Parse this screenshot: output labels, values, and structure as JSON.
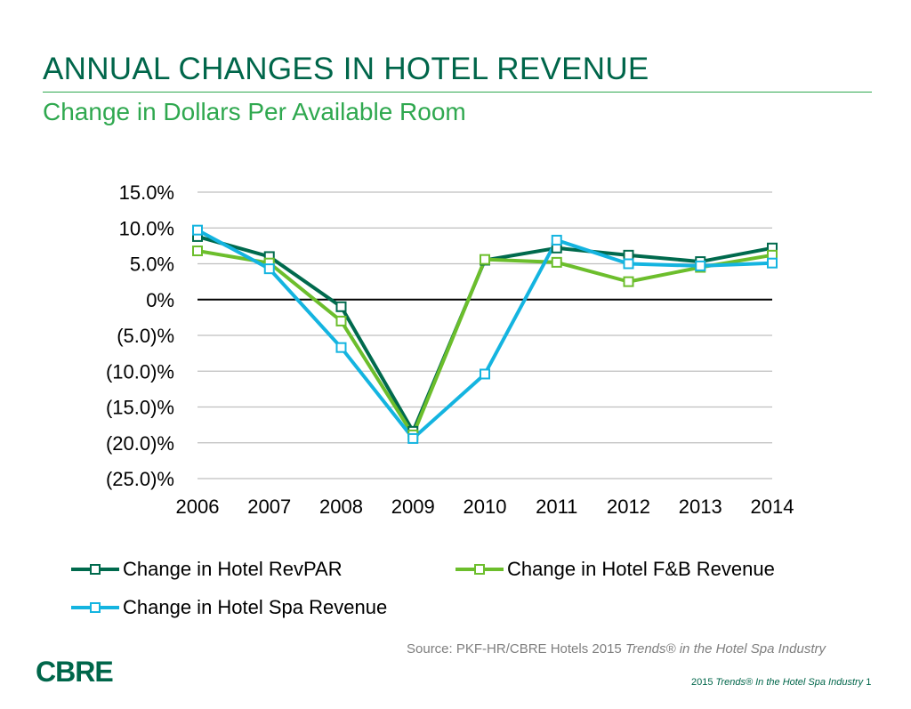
{
  "header": {
    "title": "ANNUAL CHANGES IN HOTEL REVENUE",
    "subtitle": "Change in Dollars Per Available Room"
  },
  "chart_data": {
    "type": "line",
    "title": "",
    "xlabel": "",
    "ylabel": "",
    "categories": [
      "2006",
      "2007",
      "2008",
      "2009",
      "2010",
      "2011",
      "2012",
      "2013",
      "2014"
    ],
    "ylim": [
      -25,
      15
    ],
    "yticks": [
      15,
      10,
      5,
      0,
      -5,
      -10,
      -15,
      -20,
      -25
    ],
    "ytick_labels": [
      "15.0%",
      "10.0%",
      "5.0%",
      "0%",
      "(5.0)%",
      "(10.0)%",
      "(15.0)%",
      "(20.0)%",
      "(25.0)%"
    ],
    "grid": true,
    "legend_position": "bottom",
    "series": [
      {
        "name": "Change in Hotel RevPAR",
        "color": "#006a4d",
        "values": [
          8.8,
          6.0,
          -1.0,
          -18.4,
          5.5,
          7.2,
          6.2,
          5.3,
          7.2
        ]
      },
      {
        "name": "Change in Hotel F&B Revenue",
        "color": "#6cbe2c",
        "values": [
          6.8,
          5.1,
          -3.0,
          -18.9,
          5.6,
          5.2,
          2.5,
          4.5,
          6.2
        ]
      },
      {
        "name": "Change in Hotel Spa Revenue",
        "color": "#14b4e0",
        "values": [
          9.7,
          4.3,
          -6.7,
          -19.4,
          -10.4,
          8.3,
          5.0,
          4.7,
          5.1
        ]
      }
    ]
  },
  "source": {
    "prefix": "Source: PKF-HR/CBRE Hotels 2015 ",
    "italic": "Trends® in the Hotel Spa Industry"
  },
  "logo": "CBRE",
  "footer": {
    "year": "2015 ",
    "italic": "Trends® In the Hotel Spa Industry",
    "page": " 1"
  }
}
